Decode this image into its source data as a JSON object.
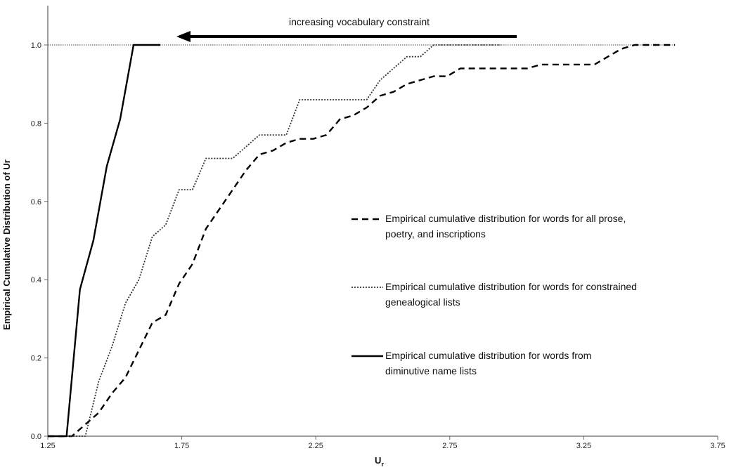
{
  "chart_data": {
    "type": "line",
    "title": "",
    "xlabel": "U",
    "xlabel_subscript": "r",
    "ylabel": "Empirical Cumulative Distribution of Ur",
    "xlim": [
      1.25,
      3.75
    ],
    "ylim": [
      0.0,
      1.0
    ],
    "xticks": [
      "1.25",
      "1.75",
      "2.25",
      "2.75",
      "3.25",
      "3.75"
    ],
    "yticks": [
      "0.0",
      "0.2",
      "0.4",
      "0.6",
      "0.8",
      "1.0"
    ],
    "grid": false,
    "reference_line": {
      "y": 1.0,
      "style": "dotted"
    },
    "annotation": {
      "text": "increasing vocabulary constraint",
      "arrow_from_x": 3.0,
      "arrow_to_x": 1.73,
      "arrow_y": 1.02
    },
    "series": [
      {
        "name": "Empirical cumulative distribution for words for all prose, poetry, and inscriptions",
        "legend_lines": [
          "Empirical cumulative distribution for words for all prose,",
          "poetry, and inscriptions"
        ],
        "style": "dashed",
        "color": "#000000",
        "x": [
          1.25,
          1.34,
          1.39,
          1.44,
          1.49,
          1.54,
          1.59,
          1.64,
          1.69,
          1.74,
          1.79,
          1.84,
          1.89,
          1.94,
          1.99,
          2.04,
          2.09,
          2.14,
          2.19,
          2.24,
          2.29,
          2.34,
          2.39,
          2.44,
          2.49,
          2.54,
          2.59,
          2.64,
          2.69,
          2.74,
          2.79,
          2.84,
          2.89,
          2.94,
          2.99,
          3.04,
          3.09,
          3.14,
          3.19,
          3.24,
          3.29,
          3.34,
          3.39,
          3.44,
          3.49,
          3.54,
          3.59
        ],
        "y": [
          0.0,
          0.0,
          0.03,
          0.06,
          0.11,
          0.15,
          0.22,
          0.29,
          0.31,
          0.39,
          0.44,
          0.53,
          0.58,
          0.63,
          0.68,
          0.72,
          0.73,
          0.75,
          0.76,
          0.76,
          0.77,
          0.81,
          0.82,
          0.84,
          0.87,
          0.88,
          0.9,
          0.91,
          0.92,
          0.92,
          0.94,
          0.94,
          0.94,
          0.94,
          0.94,
          0.94,
          0.95,
          0.95,
          0.95,
          0.95,
          0.95,
          0.97,
          0.99,
          1.0,
          1.0,
          1.0,
          1.0
        ]
      },
      {
        "name": "Empirical cumulative distribution for words for constrained genealogical lists",
        "legend_lines": [
          "Empirical cumulative distribution for words for constrained",
          "genealogical lists"
        ],
        "style": "dotted",
        "color": "#333333",
        "x": [
          1.25,
          1.39,
          1.44,
          1.49,
          1.54,
          1.59,
          1.64,
          1.69,
          1.74,
          1.79,
          1.84,
          1.89,
          1.94,
          1.99,
          2.04,
          2.09,
          2.14,
          2.19,
          2.24,
          2.29,
          2.34,
          2.39,
          2.44,
          2.49,
          2.54,
          2.59,
          2.64,
          2.69,
          2.74,
          2.79,
          2.84,
          2.89,
          2.94
        ],
        "y": [
          0.0,
          0.0,
          0.14,
          0.23,
          0.34,
          0.4,
          0.51,
          0.54,
          0.63,
          0.63,
          0.71,
          0.71,
          0.71,
          0.74,
          0.77,
          0.77,
          0.77,
          0.86,
          0.86,
          0.86,
          0.86,
          0.86,
          0.86,
          0.91,
          0.94,
          0.97,
          0.97,
          1.0,
          1.0,
          1.0,
          1.0,
          1.0,
          1.0
        ]
      },
      {
        "name": "Empirical cumulative distribution for words from diminutive name lists",
        "legend_lines": [
          "Empirical cumulative distribution for words from",
          "diminutive name lists"
        ],
        "style": "solid",
        "color": "#000000",
        "x": [
          1.25,
          1.32,
          1.37,
          1.42,
          1.47,
          1.52,
          1.57,
          1.62,
          1.67
        ],
        "y": [
          0.0,
          0.0,
          0.375,
          0.5,
          0.69,
          0.81,
          1.0,
          1.0,
          1.0
        ]
      }
    ]
  }
}
